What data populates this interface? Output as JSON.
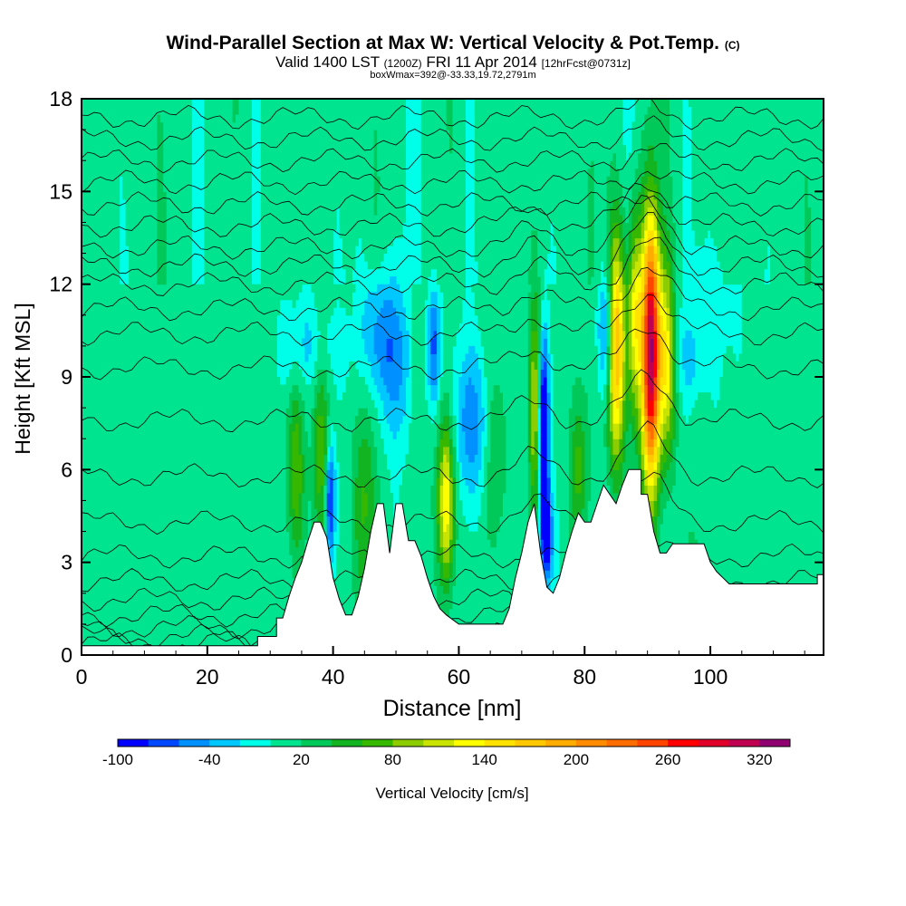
{
  "header": {
    "title_main": "Wind-Parallel Section at Max W: Vertical Velocity & Pot.Temp.",
    "title_mark": "(C)",
    "valid_prefix": "Valid 1400 LST",
    "valid_utc": "(1200Z)",
    "valid_date": "FRI 11 Apr 2014",
    "forecast": "[12hrFcst@0731z]",
    "box_info": "boxWmax=392@-33.33,19.72,2791m"
  },
  "chart_data": {
    "type": "heatmap",
    "xlabel": "Distance [nm]",
    "ylabel": "Height [Kft MSL]",
    "xlim": [
      0,
      118
    ],
    "ylim": [
      0,
      18
    ],
    "x_ticks": [
      0,
      20,
      40,
      60,
      80,
      100
    ],
    "y_ticks": [
      0,
      3,
      6,
      9,
      12,
      15,
      18
    ],
    "colorbar": {
      "label": "Vertical Velocity [cm/s]",
      "levels": [
        -100,
        -80,
        -60,
        -40,
        -20,
        0,
        20,
        40,
        60,
        80,
        100,
        120,
        140,
        160,
        180,
        200,
        220,
        240,
        260,
        280,
        300,
        320,
        340
      ],
      "tick_labels": [
        "-100",
        "-40",
        "20",
        "80",
        "140",
        "200",
        "260",
        "320"
      ],
      "colors": [
        "#0000ff",
        "#0048ff",
        "#0090ff",
        "#00c8ff",
        "#00ffe8",
        "#00e38f",
        "#00c95a",
        "#12b421",
        "#37b800",
        "#8ccc00",
        "#c8e400",
        "#ffff00",
        "#ffe200",
        "#ffc800",
        "#ffac00",
        "#ff8c00",
        "#ff6c00",
        "#ff4400",
        "#ff0000",
        "#e0002a",
        "#c00050",
        "#900070"
      ]
    },
    "terrain": [
      [
        0,
        0.3
      ],
      [
        28,
        0.3
      ],
      [
        28,
        0.6
      ],
      [
        31,
        0.6
      ],
      [
        31,
        1.2
      ],
      [
        32,
        1.2
      ],
      [
        33,
        1.9
      ],
      [
        34,
        2.5
      ],
      [
        35,
        3.0
      ],
      [
        36,
        3.7
      ],
      [
        37,
        4.3
      ],
      [
        38,
        4.3
      ],
      [
        39,
        3.8
      ],
      [
        40,
        2.5
      ],
      [
        41,
        1.8
      ],
      [
        42,
        1.3
      ],
      [
        43,
        1.3
      ],
      [
        44,
        1.9
      ],
      [
        45,
        2.8
      ],
      [
        46,
        4.0
      ],
      [
        47,
        4.9
      ],
      [
        48,
        4.9
      ],
      [
        49,
        3.3
      ],
      [
        50,
        4.9
      ],
      [
        51,
        4.9
      ],
      [
        52,
        3.7
      ],
      [
        53,
        3.7
      ],
      [
        54,
        3.2
      ],
      [
        55,
        2.5
      ],
      [
        56,
        1.9
      ],
      [
        57,
        1.5
      ],
      [
        58,
        1.3
      ],
      [
        60,
        1.0
      ],
      [
        67,
        1.0
      ],
      [
        68,
        1.5
      ],
      [
        69,
        2.5
      ],
      [
        70,
        3.3
      ],
      [
        71,
        4.3
      ],
      [
        72,
        4.9
      ],
      [
        73,
        3.3
      ],
      [
        74,
        2.2
      ],
      [
        75,
        2.0
      ],
      [
        76,
        2.5
      ],
      [
        77,
        3.3
      ],
      [
        78,
        4.0
      ],
      [
        79,
        4.6
      ],
      [
        80,
        4.3
      ],
      [
        81,
        4.3
      ],
      [
        82,
        4.9
      ],
      [
        83,
        5.5
      ],
      [
        84,
        5.2
      ],
      [
        85,
        4.9
      ],
      [
        86,
        5.5
      ],
      [
        87,
        6.0
      ],
      [
        89,
        6.0
      ],
      [
        89,
        5.2
      ],
      [
        90,
        5.2
      ],
      [
        91,
        4.0
      ],
      [
        92,
        3.3
      ],
      [
        93,
        3.3
      ],
      [
        94,
        3.6
      ],
      [
        99,
        3.6
      ],
      [
        100,
        3.0
      ],
      [
        101,
        2.7
      ],
      [
        102,
        2.5
      ],
      [
        103,
        2.3
      ],
      [
        117,
        2.3
      ],
      [
        117,
        2.6
      ],
      [
        118,
        2.6
      ]
    ]
  }
}
